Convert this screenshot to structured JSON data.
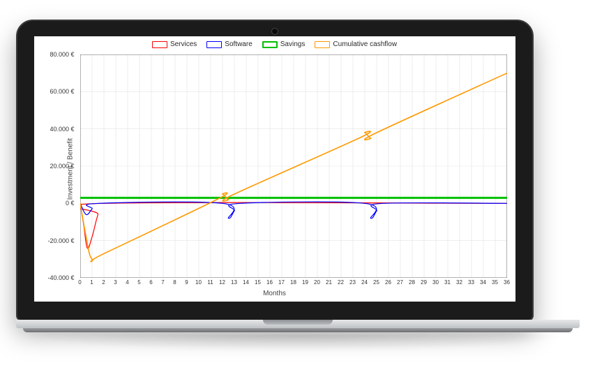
{
  "chart": {
    "type": "line",
    "xlabel": "Months",
    "ylabel": "Investment / Benefit",
    "xlim": [
      0,
      36
    ],
    "xtick_step": 1,
    "ylim": [
      -40000,
      80000
    ],
    "ytick_step": 20000,
    "ytick_labels": [
      "-40.000 €",
      "-20.000 €",
      "0 €",
      "20.000 €",
      "40.000 €",
      "60.000 €",
      "80.000 €"
    ],
    "background_color": "#ffffff",
    "grid_color": "#e3e3e3",
    "axis_color": "#666666",
    "label_fontsize": 10,
    "tick_fontsize": 9,
    "legend_position": "top-center",
    "legend": [
      {
        "label": "Services",
        "color": "#ff0000",
        "line_width": 1.2
      },
      {
        "label": "Software",
        "color": "#0000ff",
        "line_width": 1.2
      },
      {
        "label": "Savings",
        "color": "#00c000",
        "line_width": 3
      },
      {
        "label": "Cumulative cashflow",
        "color": "#ff9900",
        "line_width": 1.6
      }
    ],
    "series": {
      "services": {
        "color": "#ff0000",
        "line_width": 1.2,
        "points": [
          [
            0,
            0
          ],
          [
            0.3,
            -12000
          ],
          [
            0.6,
            -24000
          ],
          [
            1.0,
            -18000
          ],
          [
            1.5,
            -6000
          ],
          [
            2.0,
            0
          ],
          [
            36,
            0
          ]
        ]
      },
      "software": {
        "color": "#0000ff",
        "line_width": 1.2,
        "points": [
          [
            0,
            0
          ],
          [
            0.5,
            -6000
          ],
          [
            1.0,
            -3000
          ],
          [
            1.5,
            0
          ],
          [
            12,
            0
          ],
          [
            12.5,
            -8000
          ],
          [
            13,
            -4000
          ],
          [
            13.5,
            0
          ],
          [
            24,
            0
          ],
          [
            24.5,
            -8000
          ],
          [
            25,
            -4000
          ],
          [
            25.5,
            0
          ],
          [
            36,
            0
          ]
        ]
      },
      "savings": {
        "color": "#00c000",
        "line_width": 3,
        "points": [
          [
            0,
            3000
          ],
          [
            36,
            3000
          ]
        ]
      },
      "cumulative": {
        "color": "#ff9900",
        "line_width": 1.6,
        "points": [
          [
            0,
            0
          ],
          [
            0.5,
            -18000
          ],
          [
            1,
            -30000
          ],
          [
            2,
            -27000
          ],
          [
            11.5,
            2000
          ],
          [
            12,
            5000
          ],
          [
            12.5,
            2000
          ],
          [
            13,
            5000
          ],
          [
            23.5,
            35000
          ],
          [
            24,
            38000
          ],
          [
            24.5,
            35000
          ],
          [
            25,
            38000
          ],
          [
            36,
            70000
          ]
        ]
      }
    }
  },
  "device": {
    "bezel_color": "#1b1b1b",
    "base_color": "#c6c8ca"
  }
}
